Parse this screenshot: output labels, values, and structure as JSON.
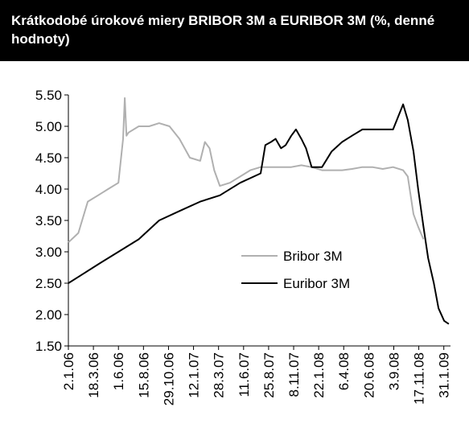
{
  "chart_data": {
    "type": "line",
    "title": "Krátkodobé úrokové miery BRIBOR 3M a EURIBOR 3M (%, denné hodnoty)",
    "xlim": [
      "2.1.06",
      "20.2.09"
    ],
    "xticks": [
      "2.1.06",
      "18.3.06",
      "1.6.06",
      "15.8.06",
      "29.10.06",
      "12.1.07",
      "28.3.07",
      "11.6.07",
      "25.8.07",
      "8.11.07",
      "22.1.08",
      "6.4.08",
      "20.6.08",
      "3.9.08",
      "17.11.08",
      "31.1.09"
    ],
    "ylim": [
      1.5,
      5.5
    ],
    "yticks": [
      {
        "value": 1.5,
        "label": "1.50"
      },
      {
        "value": 2,
        "label": "2.00"
      },
      {
        "value": 2.5,
        "label": "2.50"
      },
      {
        "value": 3,
        "label": "3.00"
      },
      {
        "value": 3.5,
        "label": "3.50"
      },
      {
        "value": 4,
        "label": "4.00"
      },
      {
        "value": 4.5,
        "label": "4.50"
      },
      {
        "value": 5,
        "label": "5.00"
      },
      {
        "value": 5.5,
        "label": "5.50"
      }
    ],
    "legend": "center-right",
    "series": [
      {
        "name": "Bribor 3M",
        "color": "#b0b0b0",
        "x": [
          "2.1.06",
          "1.2.06",
          "1.3.06",
          "1.4.06",
          "1.5.06",
          "1.6.06",
          "15.6.06",
          "20.6.06",
          "25.6.06",
          "1.7.06",
          "1.8.06",
          "1.9.06",
          "1.10.06",
          "1.11.06",
          "1.12.06",
          "1.1.07",
          "1.2.07",
          "15.2.07",
          "1.3.07",
          "15.3.07",
          "1.4.07",
          "1.5.07",
          "1.6.07",
          "1.7.07",
          "1.8.07",
          "1.9.07",
          "1.10.07",
          "1.11.07",
          "1.12.07",
          "1.1.08",
          "1.2.08",
          "1.3.08",
          "1.4.08",
          "1.5.08",
          "1.6.08",
          "1.7.08",
          "1.8.08",
          "1.9.08",
          "1.10.08",
          "15.10.08",
          "1.11.08",
          "15.11.08",
          "1.12.08"
        ],
        "values": [
          3.15,
          3.3,
          3.8,
          3.9,
          4.0,
          4.1,
          4.8,
          5.45,
          4.85,
          4.9,
          5.0,
          5.0,
          5.05,
          5.0,
          4.8,
          4.5,
          4.45,
          4.75,
          4.65,
          4.3,
          4.05,
          4.1,
          4.2,
          4.3,
          4.35,
          4.35,
          4.35,
          4.35,
          4.38,
          4.35,
          4.3,
          4.3,
          4.3,
          4.32,
          4.35,
          4.35,
          4.32,
          4.35,
          4.3,
          4.2,
          3.6,
          3.4,
          3.2
        ]
      },
      {
        "name": "Euribor 3M",
        "color": "#000000",
        "x": [
          "2.1.06",
          "1.2.06",
          "1.4.06",
          "1.6.06",
          "1.8.06",
          "1.10.06",
          "1.12.06",
          "1.2.07",
          "1.4.07",
          "1.6.07",
          "1.8.07",
          "15.8.07",
          "1.9.07",
          "15.9.07",
          "1.10.07",
          "15.10.07",
          "1.11.07",
          "15.11.07",
          "1.12.07",
          "15.12.07",
          "1.1.08",
          "1.2.08",
          "1.3.08",
          "1.4.08",
          "1.5.08",
          "1.6.08",
          "1.7.08",
          "1.8.08",
          "1.9.08",
          "1.10.08",
          "15.10.08",
          "1.11.08",
          "15.11.08",
          "1.12.08",
          "15.12.08",
          "1.1.09",
          "15.1.09",
          "1.2.09",
          "15.2.09"
        ],
        "values": [
          2.5,
          2.6,
          2.8,
          3.0,
          3.2,
          3.5,
          3.65,
          3.8,
          3.9,
          4.1,
          4.25,
          4.7,
          4.75,
          4.8,
          4.65,
          4.7,
          4.85,
          4.95,
          4.8,
          4.65,
          4.35,
          4.35,
          4.6,
          4.75,
          4.85,
          4.95,
          4.95,
          4.95,
          4.95,
          5.35,
          5.1,
          4.6,
          4.0,
          3.4,
          2.9,
          2.5,
          2.1,
          1.9,
          1.85
        ]
      }
    ]
  }
}
